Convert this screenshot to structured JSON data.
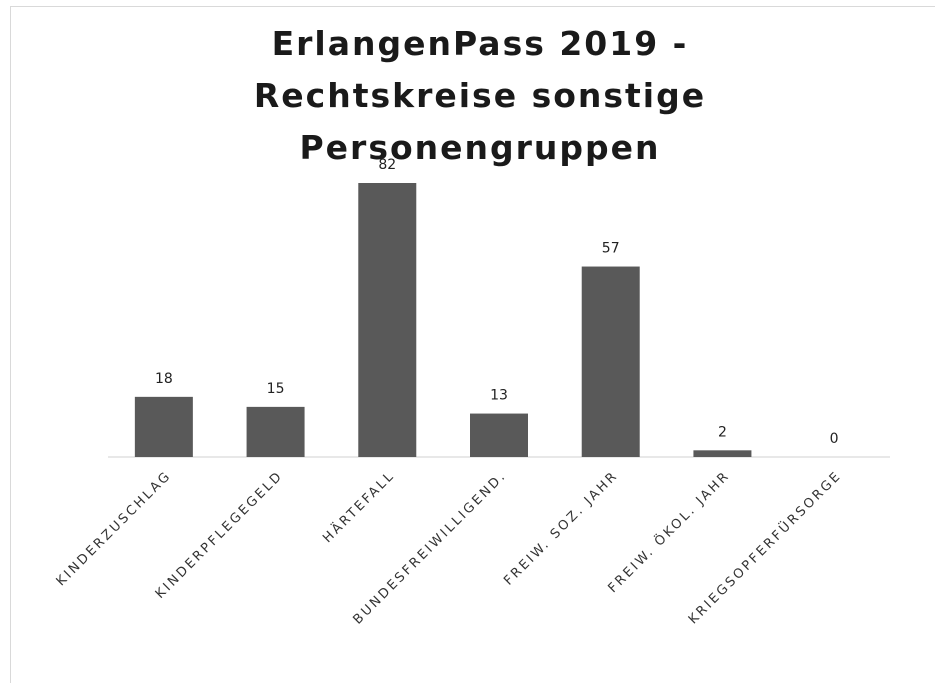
{
  "chart_data": {
    "type": "bar",
    "title": "ErlangenPass 2019 - Rechtskreise sonstige Personengruppen",
    "categories": [
      "KINDERZUSCHLAG",
      "KINDERPFLEGEGELD",
      "HÄRTEFALL",
      "BUNDESFREIWILLIGEND.",
      "FREIW. SOZ. JAHR",
      "FREIW. ÖKOL. JAHR",
      "KRIEGSOPFERFÜRSORGE"
    ],
    "values": [
      18,
      15,
      82,
      13,
      57,
      2,
      0
    ],
    "color": "#595959"
  }
}
